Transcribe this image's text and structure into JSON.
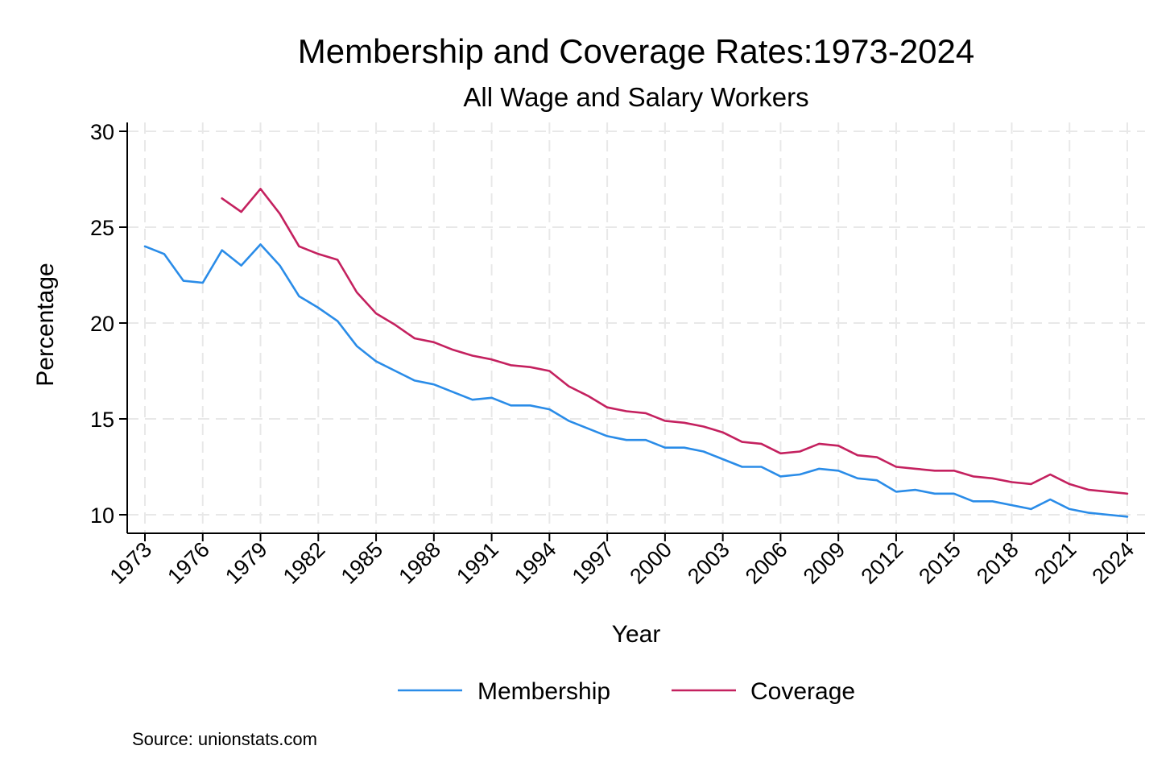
{
  "chart_data": {
    "type": "line",
    "title": "Membership and Coverage Rates:1973-2024",
    "subtitle": "All Wage and Salary Workers",
    "xlabel": "Year",
    "ylabel": "Percentage",
    "source": "Source: unionstats.com",
    "xlim": [
      1973,
      2024
    ],
    "ylim": [
      10,
      30
    ],
    "yticks": [
      "10",
      "15",
      "20",
      "25",
      "30"
    ],
    "xticks": [
      "1973",
      "1976",
      "1979",
      "1982",
      "1985",
      "1988",
      "1991",
      "1994",
      "1997",
      "2000",
      "2003",
      "2006",
      "2009",
      "2012",
      "2015",
      "2018",
      "2021",
      "2024"
    ],
    "grid": true,
    "legend_position": "bottom",
    "series": [
      {
        "name": "Membership",
        "color": "#2a8ce8",
        "x": [
          1973,
          1974,
          1975,
          1976,
          1977,
          1978,
          1979,
          1980,
          1981,
          1982,
          1983,
          1984,
          1985,
          1986,
          1987,
          1988,
          1989,
          1990,
          1991,
          1992,
          1993,
          1994,
          1995,
          1996,
          1997,
          1998,
          1999,
          2000,
          2001,
          2002,
          2003,
          2004,
          2005,
          2006,
          2007,
          2008,
          2009,
          2010,
          2011,
          2012,
          2013,
          2014,
          2015,
          2016,
          2017,
          2018,
          2019,
          2020,
          2021,
          2022,
          2023,
          2024
        ],
        "values": [
          24.0,
          23.6,
          22.2,
          22.1,
          23.8,
          23.0,
          24.1,
          23.0,
          21.4,
          20.8,
          20.1,
          18.8,
          18.0,
          17.5,
          17.0,
          16.8,
          16.4,
          16.0,
          16.1,
          15.7,
          15.7,
          15.5,
          14.9,
          14.5,
          14.1,
          13.9,
          13.9,
          13.5,
          13.5,
          13.3,
          12.9,
          12.5,
          12.5,
          12.0,
          12.1,
          12.4,
          12.3,
          11.9,
          11.8,
          11.2,
          11.3,
          11.1,
          11.1,
          10.7,
          10.7,
          10.5,
          10.3,
          10.8,
          10.3,
          10.1,
          10.0,
          9.9
        ]
      },
      {
        "name": "Coverage",
        "color": "#c4215f",
        "x": [
          1977,
          1978,
          1979,
          1980,
          1981,
          1982,
          1983,
          1984,
          1985,
          1986,
          1987,
          1988,
          1989,
          1990,
          1991,
          1992,
          1993,
          1994,
          1995,
          1996,
          1997,
          1998,
          1999,
          2000,
          2001,
          2002,
          2003,
          2004,
          2005,
          2006,
          2007,
          2008,
          2009,
          2010,
          2011,
          2012,
          2013,
          2014,
          2015,
          2016,
          2017,
          2018,
          2019,
          2020,
          2021,
          2022,
          2023,
          2024
        ],
        "values": [
          26.5,
          25.8,
          27.0,
          25.7,
          24.0,
          23.6,
          23.3,
          21.6,
          20.5,
          19.9,
          19.2,
          19.0,
          18.6,
          18.3,
          18.1,
          17.8,
          17.7,
          17.5,
          16.7,
          16.2,
          15.6,
          15.4,
          15.3,
          14.9,
          14.8,
          14.6,
          14.3,
          13.8,
          13.7,
          13.2,
          13.3,
          13.7,
          13.6,
          13.1,
          13.0,
          12.5,
          12.4,
          12.3,
          12.3,
          12.0,
          11.9,
          11.7,
          11.6,
          12.1,
          11.6,
          11.3,
          11.2,
          11.1
        ]
      }
    ]
  }
}
